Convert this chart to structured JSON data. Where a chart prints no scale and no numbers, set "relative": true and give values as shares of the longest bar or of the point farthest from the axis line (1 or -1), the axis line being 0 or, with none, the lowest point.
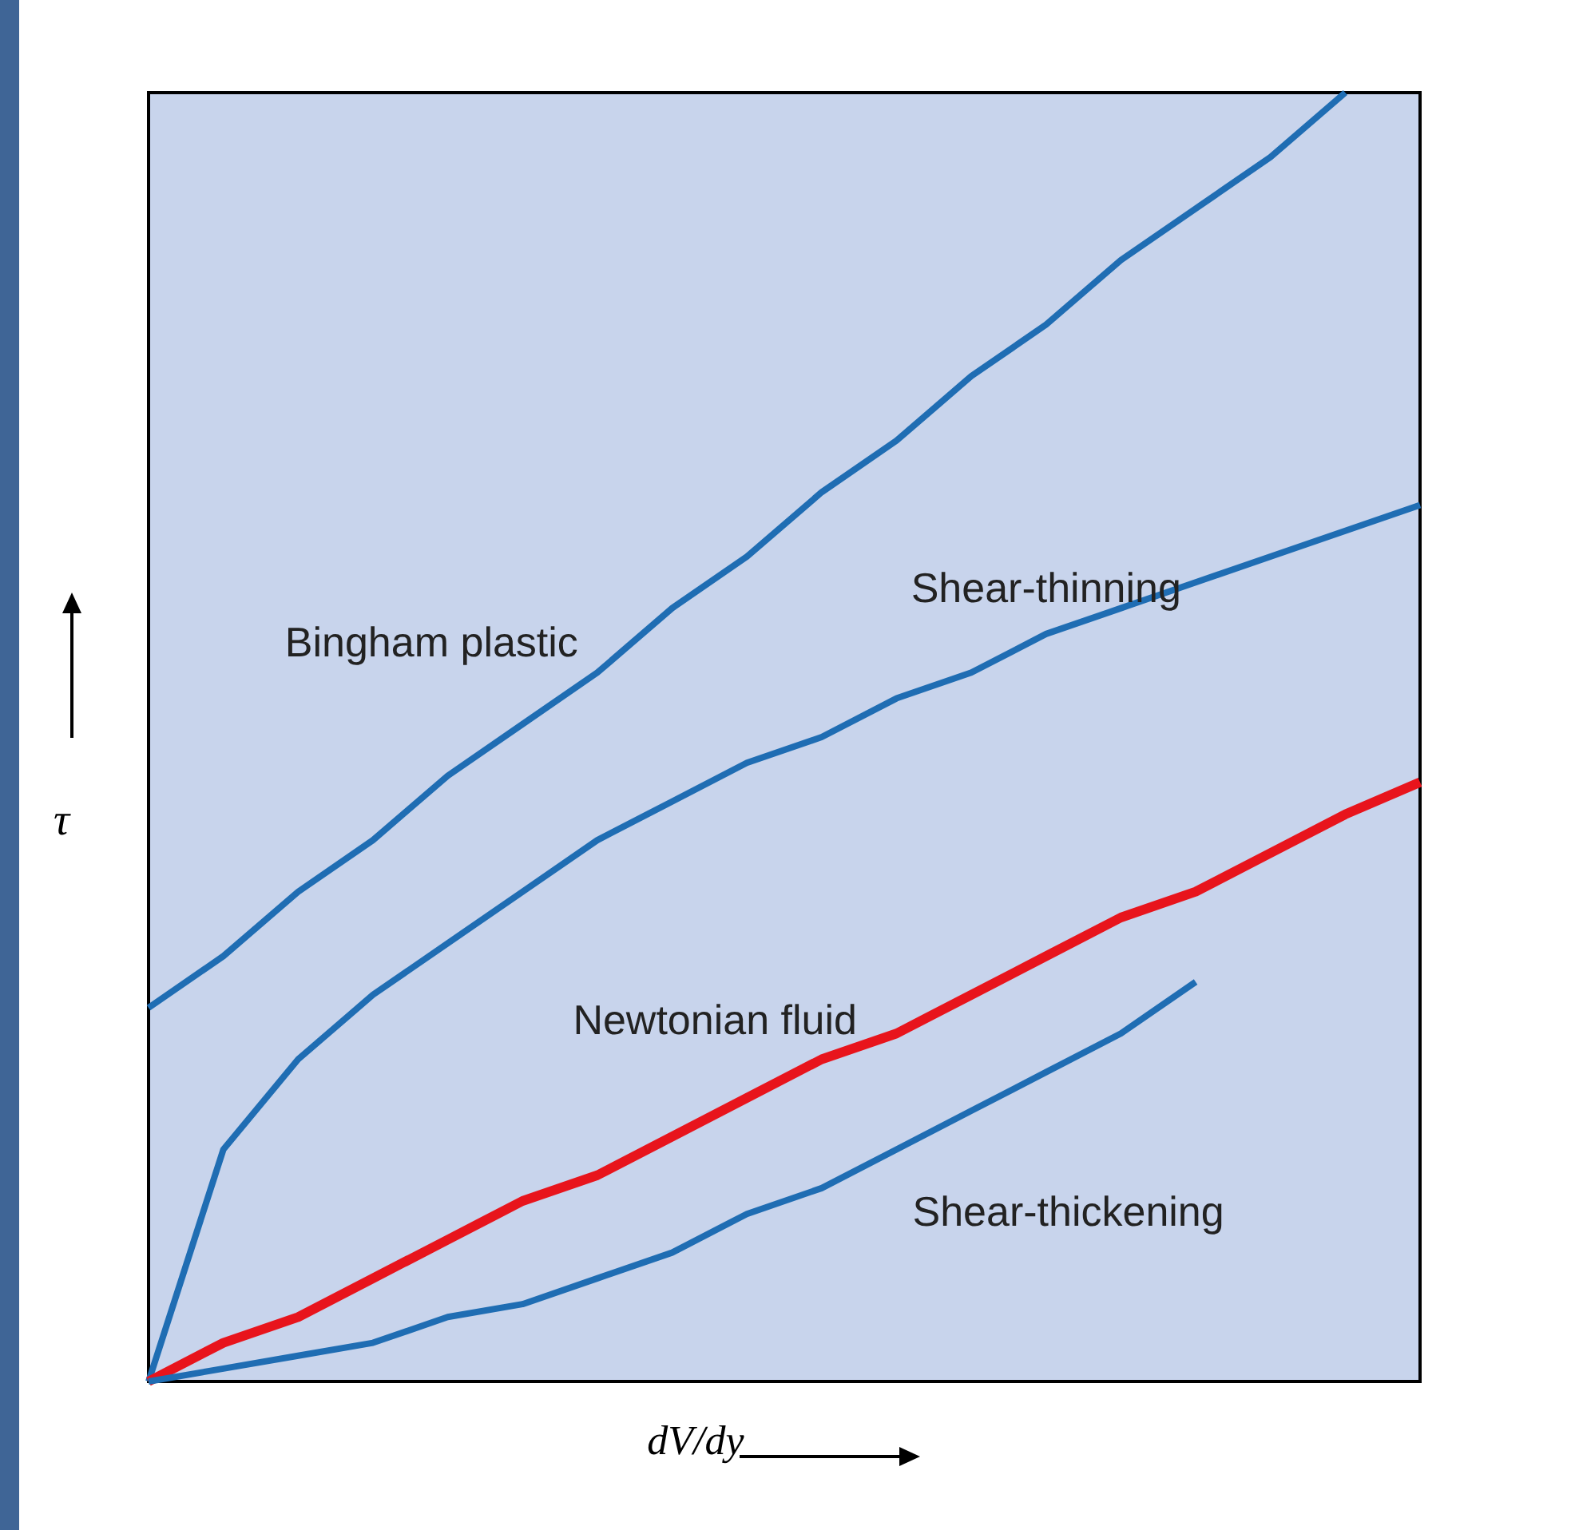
{
  "chart_data": {
    "type": "line",
    "relative": true,
    "xlabel": "dV/dy",
    "ylabel": "τ",
    "categories": [
      null,
      null,
      null,
      null,
      null,
      null,
      null,
      null,
      null,
      null,
      null,
      null,
      null,
      null,
      null,
      null,
      null,
      null
    ],
    "series": [
      {
        "name": "Bingham plastic",
        "color": "#1f6db3",
        "values": [
          0.29,
          0.33,
          0.38,
          0.42,
          0.47,
          0.51,
          0.55,
          0.6,
          0.64,
          0.69,
          0.73,
          0.78,
          0.82,
          0.87,
          0.91,
          0.95,
          1.0,
          null
        ]
      },
      {
        "name": "Shear-thinning",
        "color": "#1f6db3",
        "values": [
          0,
          0.18,
          0.25,
          0.3,
          0.34,
          0.38,
          0.42,
          0.45,
          0.48,
          0.5,
          0.53,
          0.55,
          0.58,
          0.6,
          0.62,
          0.64,
          0.66,
          0.68
        ]
      },
      {
        "name": "Newtonian fluid",
        "color": "#e8141c",
        "values": [
          0,
          0.03,
          0.05,
          0.08,
          0.11,
          0.14,
          0.16,
          0.19,
          0.22,
          0.25,
          0.27,
          0.3,
          0.33,
          0.36,
          0.38,
          0.41,
          0.44,
          0.465
        ]
      },
      {
        "name": "Shear-thickening",
        "color": "#1f6db3",
        "values": [
          0,
          0.01,
          0.02,
          0.03,
          0.05,
          0.06,
          0.08,
          0.1,
          0.13,
          0.15,
          0.18,
          0.21,
          0.24,
          0.27,
          0.31,
          null,
          null,
          null
        ]
      }
    ],
    "marker": "none",
    "line_style": "solid",
    "grid": false
  }
}
